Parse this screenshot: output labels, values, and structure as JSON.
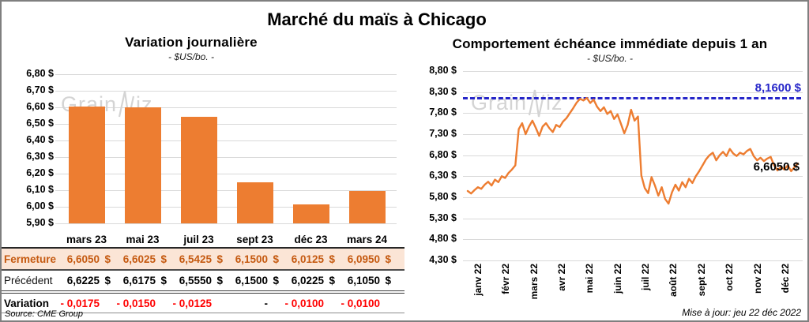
{
  "page_title": "Marché du maïs à Chicago",
  "colors": {
    "orange": "#ED7D31",
    "blue_dash": "#2626C9",
    "red": "#FF0000",
    "fermeture_bg": "#FBE5D6",
    "fermeture_text": "#C55A11",
    "grid": "#D9D9D9",
    "watermark": "#D4D4D4"
  },
  "watermark": {
    "left": "Grain",
    "right": "iz"
  },
  "chart_data": [
    {
      "type": "bar",
      "title": "Variation journalière",
      "subtitle": "- $US/bo. -",
      "categories": [
        "mars 23",
        "mai 23",
        "juil 23",
        "sept 23",
        "déc 23",
        "mars 24"
      ],
      "values": [
        6.605,
        6.6025,
        6.5425,
        6.15,
        6.0125,
        6.095
      ],
      "ylim": [
        5.9,
        6.8
      ],
      "ytick_labels": [
        "6,80 $",
        "6,70 $",
        "6,60 $",
        "6,50 $",
        "6,40 $",
        "6,30 $",
        "6,20 $",
        "6,10 $",
        "6,00 $",
        "5,90 $"
      ],
      "grid": true,
      "bar_color": "#ED7D31"
    },
    {
      "type": "line",
      "title": "Comportement échéance immédiate depuis 1 an",
      "subtitle": "- $US/bo. -",
      "x_labels": [
        "janv 22",
        "févr 22",
        "mars 22",
        "avr 22",
        "mai 22",
        "juin 22",
        "juil 22",
        "août 22",
        "sept 22",
        "oct 22",
        "nov 22",
        "déc 22"
      ],
      "values": [
        5.95,
        5.89,
        5.97,
        6.04,
        6.0,
        6.1,
        6.17,
        6.08,
        6.22,
        6.16,
        6.3,
        6.26,
        6.38,
        6.46,
        6.56,
        7.42,
        7.56,
        7.3,
        7.48,
        7.62,
        7.45,
        7.26,
        7.48,
        7.56,
        7.44,
        7.35,
        7.52,
        7.47,
        7.6,
        7.68,
        7.8,
        7.92,
        8.05,
        8.14,
        8.1,
        8.16,
        8.04,
        8.12,
        7.95,
        7.85,
        7.94,
        7.78,
        7.85,
        7.66,
        7.77,
        7.55,
        7.32,
        7.52,
        7.88,
        7.62,
        7.72,
        6.32,
        6.02,
        5.9,
        6.28,
        6.08,
        5.84,
        6.04,
        5.76,
        5.65,
        5.92,
        6.1,
        5.96,
        6.16,
        6.04,
        6.24,
        6.14,
        6.3,
        6.42,
        6.56,
        6.7,
        6.8,
        6.86,
        6.68,
        6.8,
        6.88,
        6.78,
        6.95,
        6.84,
        6.78,
        6.86,
        6.82,
        6.9,
        6.95,
        6.78,
        6.68,
        6.74,
        6.66,
        6.72,
        6.76,
        6.56,
        6.44,
        6.52,
        6.46,
        6.56,
        6.42,
        6.52,
        6.605
      ],
      "ylim": [
        4.3,
        8.8
      ],
      "ytick_labels": [
        "8,80 $",
        "8,30 $",
        "7,80 $",
        "7,30 $",
        "6,80 $",
        "6,30 $",
        "5,80 $",
        "5,30 $",
        "4,80 $",
        "4,30 $"
      ],
      "grid": true,
      "line_color": "#ED7D31",
      "reference_line": {
        "value": 8.16,
        "label": "8,1600 $"
      },
      "last_point_label": "6,6050 $"
    }
  ],
  "table": {
    "col_headers": [
      "mars 23",
      "mai 23",
      "juil 23",
      "sept 23",
      "déc 23",
      "mars 24"
    ],
    "rows": [
      {
        "id": "fermeture",
        "label": "Fermeture",
        "values": [
          "6,6050",
          "6,6025",
          "6,5425",
          "6,1500",
          "6,0125",
          "6,0950"
        ],
        "currency": "$"
      },
      {
        "id": "precedent",
        "label": "Précédent",
        "values": [
          "6,6225",
          "6,6175",
          "6,5550",
          "6,1500",
          "6,0225",
          "6,1050"
        ],
        "currency": "$"
      },
      {
        "id": "variation",
        "label": "Variation",
        "values": [
          "- 0,0175",
          "- 0,0150",
          "- 0,0125",
          "-",
          "- 0,0100",
          "- 0,0100"
        ],
        "currency": ""
      }
    ],
    "source": "Source: CME Group"
  },
  "footer": {
    "update": "Mise à jour: jeu 22 déc 2022"
  }
}
